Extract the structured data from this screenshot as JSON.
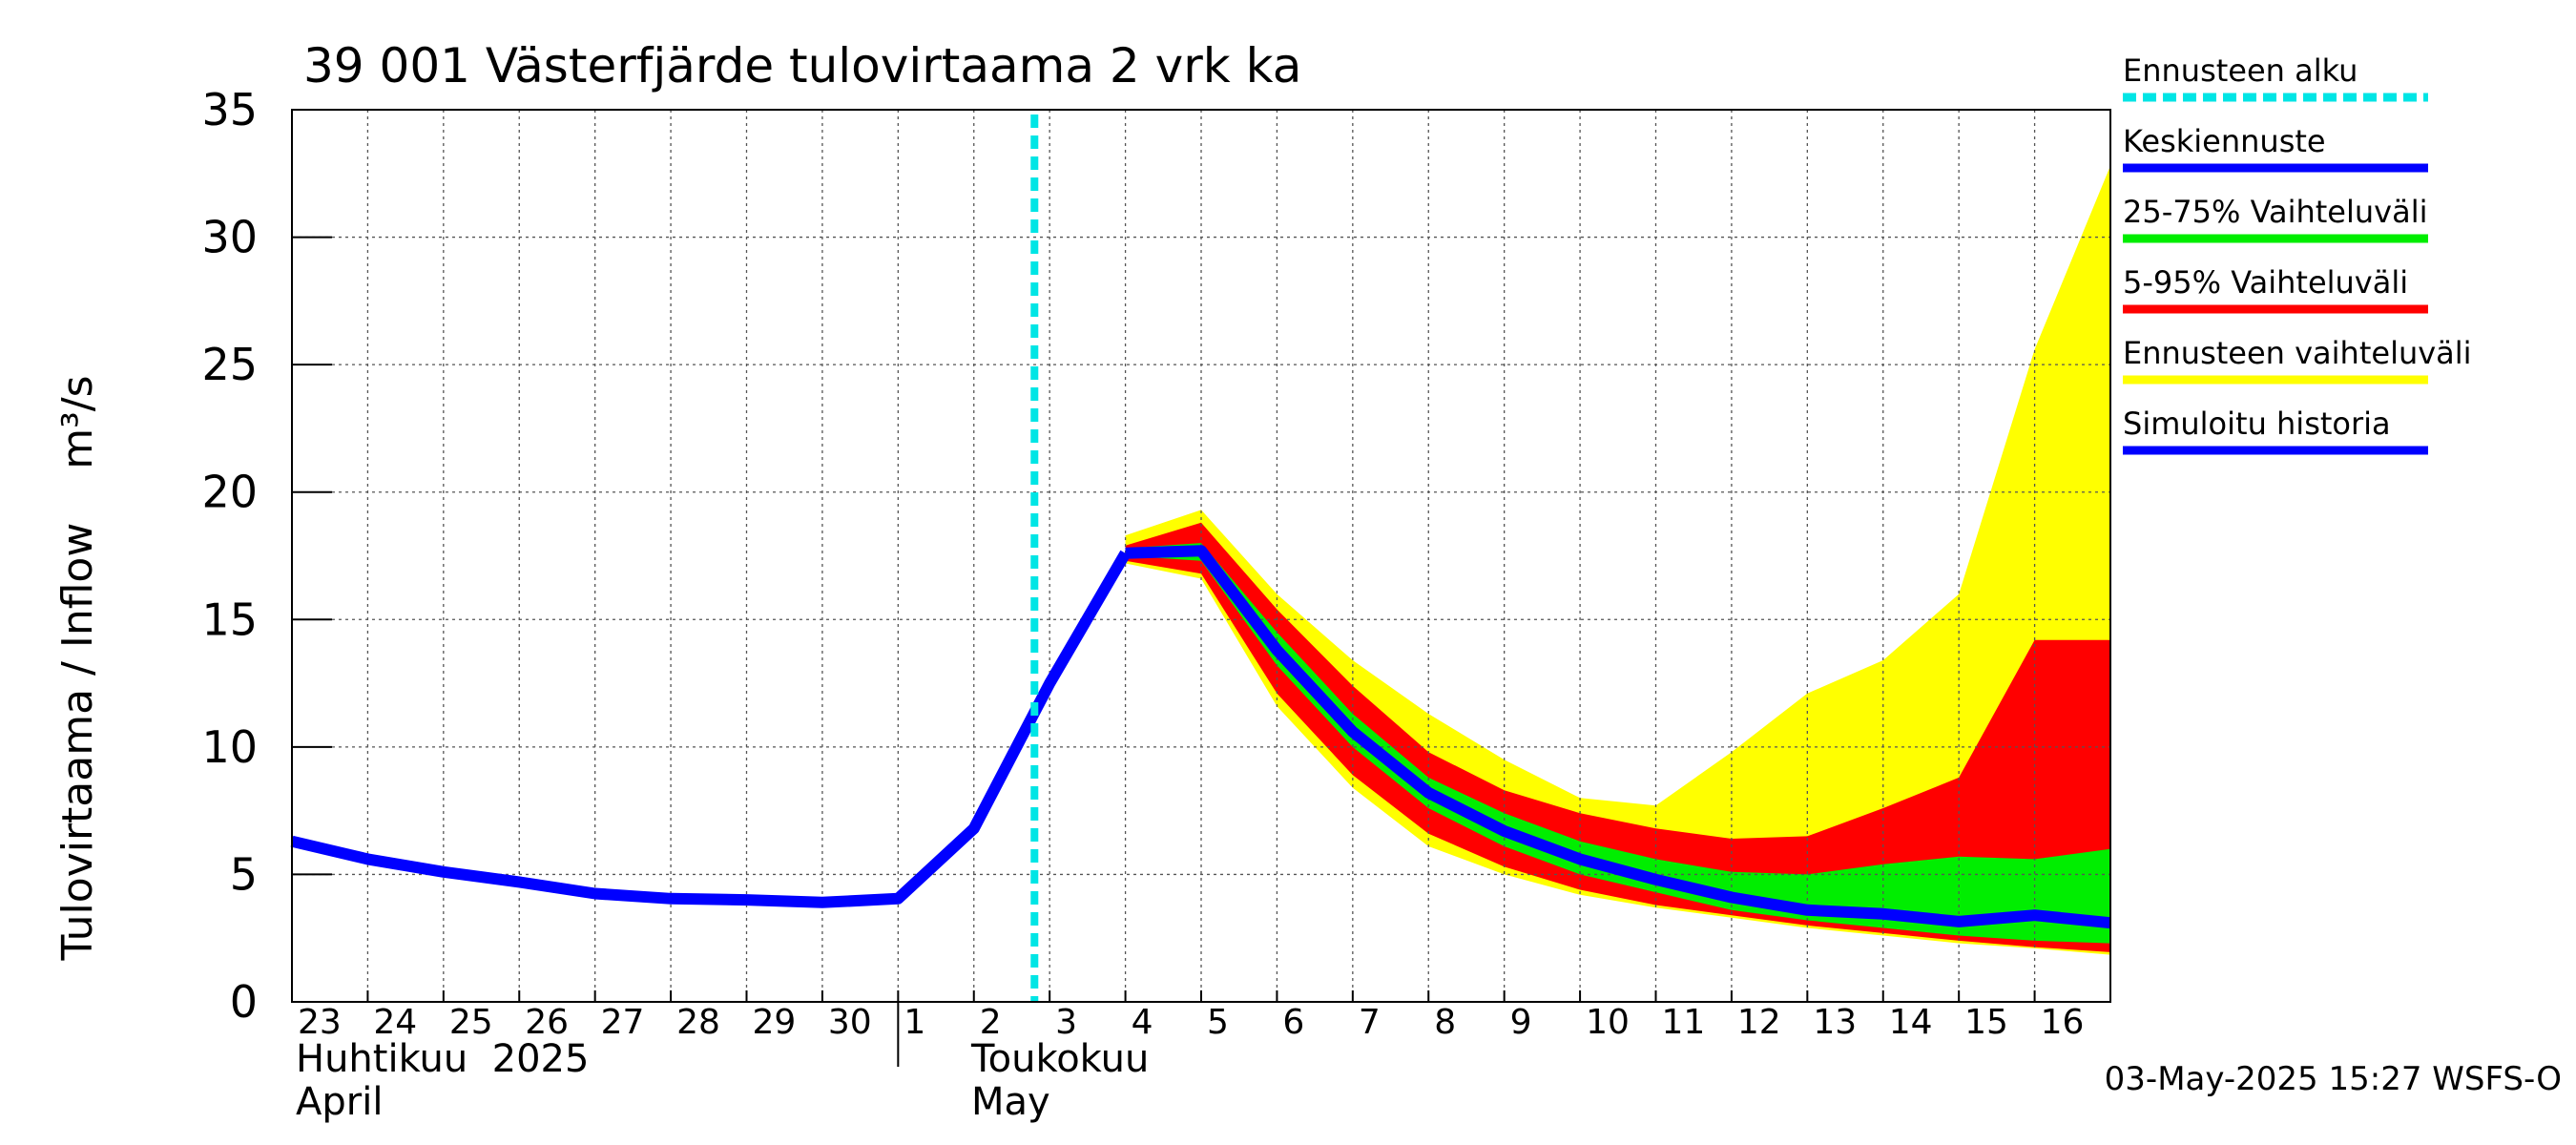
{
  "chart_data": {
    "type": "area",
    "title": "39 001 Västerfjärde tulovirtaama 2 vrk ka",
    "ylabel": "Tulovirtaama / Inflow    m³/s",
    "ylim": [
      0,
      35
    ],
    "y_ticks": [
      0,
      5,
      10,
      15,
      20,
      25,
      30,
      35
    ],
    "x_tick_labels": [
      "23",
      "24",
      "25",
      "26",
      "27",
      "28",
      "29",
      "30",
      "1",
      "2",
      "3",
      "4",
      "5",
      "6",
      "7",
      "8",
      "9",
      "10",
      "11",
      "12",
      "13",
      "14",
      "15",
      "16"
    ],
    "month_labels": {
      "april_fi": "Huhtikuu  2025",
      "april_en": "April",
      "may_fi": "Toukokuu",
      "may_en": "May"
    },
    "forecast_start": "2025-05-03",
    "grid": true,
    "legend_position": "right",
    "legend": [
      {
        "label": "Ennusteen alku",
        "color": "#00e5e5",
        "style": "dashed"
      },
      {
        "label": "Keskiennuste",
        "color": "#0000ff",
        "style": "solid"
      },
      {
        "label": "25-75% Vaihteluväli",
        "color": "#00ee00",
        "style": "solid"
      },
      {
        "label": "5-95% Vaihteluväli",
        "color": "#ff0000",
        "style": "solid"
      },
      {
        "label": "Ennusteen vaihteluväli",
        "color": "#ffff00",
        "style": "solid"
      },
      {
        "label": "Simuloitu historia",
        "color": "#0000ff",
        "style": "solid"
      }
    ],
    "series": [
      {
        "name": "Simuloitu historia",
        "x": [
          "2025-04-23",
          "2025-04-24",
          "2025-04-25",
          "2025-04-26",
          "2025-04-27",
          "2025-04-28",
          "2025-04-29",
          "2025-04-30",
          "2025-05-01",
          "2025-05-02",
          "2025-05-03",
          "2025-05-04"
        ],
        "y": [
          6.3,
          5.6,
          5.1,
          4.7,
          4.25,
          4.05,
          4.0,
          3.9,
          4.05,
          6.8,
          12.5,
          17.6
        ]
      },
      {
        "name": "Keskiennuste",
        "x": [
          "2025-05-04",
          "2025-05-05",
          "2025-05-06",
          "2025-05-07",
          "2025-05-08",
          "2025-05-09",
          "2025-05-10",
          "2025-05-11",
          "2025-05-12",
          "2025-05-13",
          "2025-05-14",
          "2025-05-15",
          "2025-05-16",
          "2025-05-17"
        ],
        "y": [
          17.6,
          17.7,
          13.8,
          10.6,
          8.2,
          6.7,
          5.6,
          4.8,
          4.1,
          3.6,
          3.45,
          3.15,
          3.4,
          3.1
        ]
      },
      {
        "name": "25-75% Vaihteluväli",
        "x": [
          "2025-05-04",
          "2025-05-05",
          "2025-05-06",
          "2025-05-07",
          "2025-05-08",
          "2025-05-09",
          "2025-05-10",
          "2025-05-11",
          "2025-05-12",
          "2025-05-13",
          "2025-05-14",
          "2025-05-15",
          "2025-05-16",
          "2025-05-17"
        ],
        "low": [
          17.5,
          17.3,
          13.2,
          10.0,
          7.6,
          6.1,
          5.0,
          4.3,
          3.6,
          3.2,
          2.9,
          2.6,
          2.4,
          2.3
        ],
        "high": [
          17.8,
          18.0,
          14.5,
          11.3,
          8.8,
          7.4,
          6.3,
          5.6,
          5.1,
          5.0,
          5.4,
          5.7,
          5.6,
          6.0
        ]
      },
      {
        "name": "5-95% Vaihteluväli",
        "x": [
          "2025-05-04",
          "2025-05-05",
          "2025-05-06",
          "2025-05-07",
          "2025-05-08",
          "2025-05-09",
          "2025-05-10",
          "2025-05-11",
          "2025-05-12",
          "2025-05-13",
          "2025-05-14",
          "2025-05-15",
          "2025-05-16",
          "2025-05-17"
        ],
        "low": [
          17.3,
          16.8,
          12.1,
          8.9,
          6.6,
          5.3,
          4.4,
          3.8,
          3.4,
          3.0,
          2.7,
          2.4,
          2.15,
          1.95
        ],
        "high": [
          17.9,
          18.8,
          15.4,
          12.4,
          9.8,
          8.3,
          7.4,
          6.8,
          6.4,
          6.5,
          7.6,
          8.8,
          14.2,
          14.2
        ]
      },
      {
        "name": "Ennusteen vaihteluväli",
        "x": [
          "2025-05-04",
          "2025-05-05",
          "2025-05-06",
          "2025-05-07",
          "2025-05-08",
          "2025-05-09",
          "2025-05-10",
          "2025-05-11",
          "2025-05-12",
          "2025-05-13",
          "2025-05-14",
          "2025-05-15",
          "2025-05-16",
          "2025-05-17"
        ],
        "low": [
          17.2,
          16.6,
          11.6,
          8.4,
          6.1,
          5.0,
          4.2,
          3.7,
          3.3,
          2.9,
          2.6,
          2.3,
          2.1,
          1.85
        ],
        "high": [
          18.3,
          19.3,
          16.0,
          13.4,
          11.3,
          9.5,
          8.0,
          7.7,
          9.8,
          12.1,
          13.4,
          16.0,
          25.6,
          32.8
        ]
      }
    ]
  },
  "footer": {
    "timestamp": "03-May-2025 15:27 WSFS-O"
  }
}
